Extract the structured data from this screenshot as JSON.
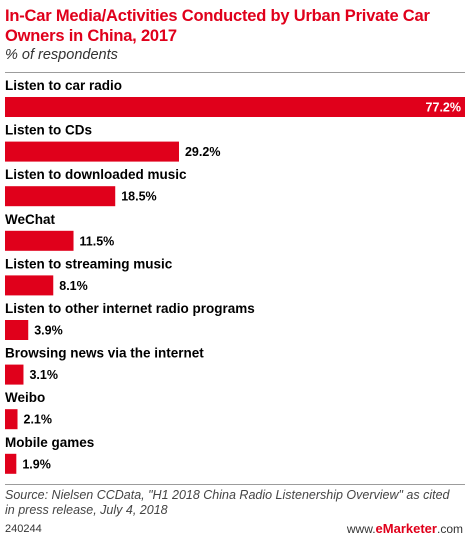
{
  "header": {
    "title": "In-Car Media/Activities Conducted by Urban Private Car Owners in China, 2017",
    "subtitle": "% of respondents"
  },
  "chart_data": {
    "type": "bar",
    "orientation": "horizontal",
    "categories": [
      "Listen to car radio",
      "Listen to CDs",
      "Listen to downloaded music",
      "WeChat",
      "Listen to streaming music",
      "Listen to other internet radio programs",
      "Browsing news via the internet",
      "Weibo",
      "Mobile games"
    ],
    "values": [
      77.2,
      29.2,
      18.5,
      11.5,
      8.1,
      3.9,
      3.1,
      2.1,
      1.9
    ],
    "value_labels": [
      "77.2%",
      "29.2%",
      "18.5%",
      "11.5%",
      "8.1%",
      "3.9%",
      "3.1%",
      "2.1%",
      "1.9%"
    ],
    "title": "In-Car Media/Activities Conducted by Urban Private Car Owners in China, 2017",
    "xlabel": "",
    "ylabel": "",
    "xlim": [
      0,
      77.2
    ],
    "grid": false,
    "legend": "none",
    "bar_color": "#e0001b"
  },
  "footer": {
    "source": "Source: Nielsen CCData, \"H1 2018 China Radio Listenership Overview\" as cited in press release, July 4, 2018",
    "chart_id": "240244",
    "brand_prefix": "www.",
    "brand_name": "eMarketer",
    "brand_suffix": ".com"
  },
  "colors": {
    "accent": "#e0001b",
    "rule": "#9c9c9c"
  }
}
